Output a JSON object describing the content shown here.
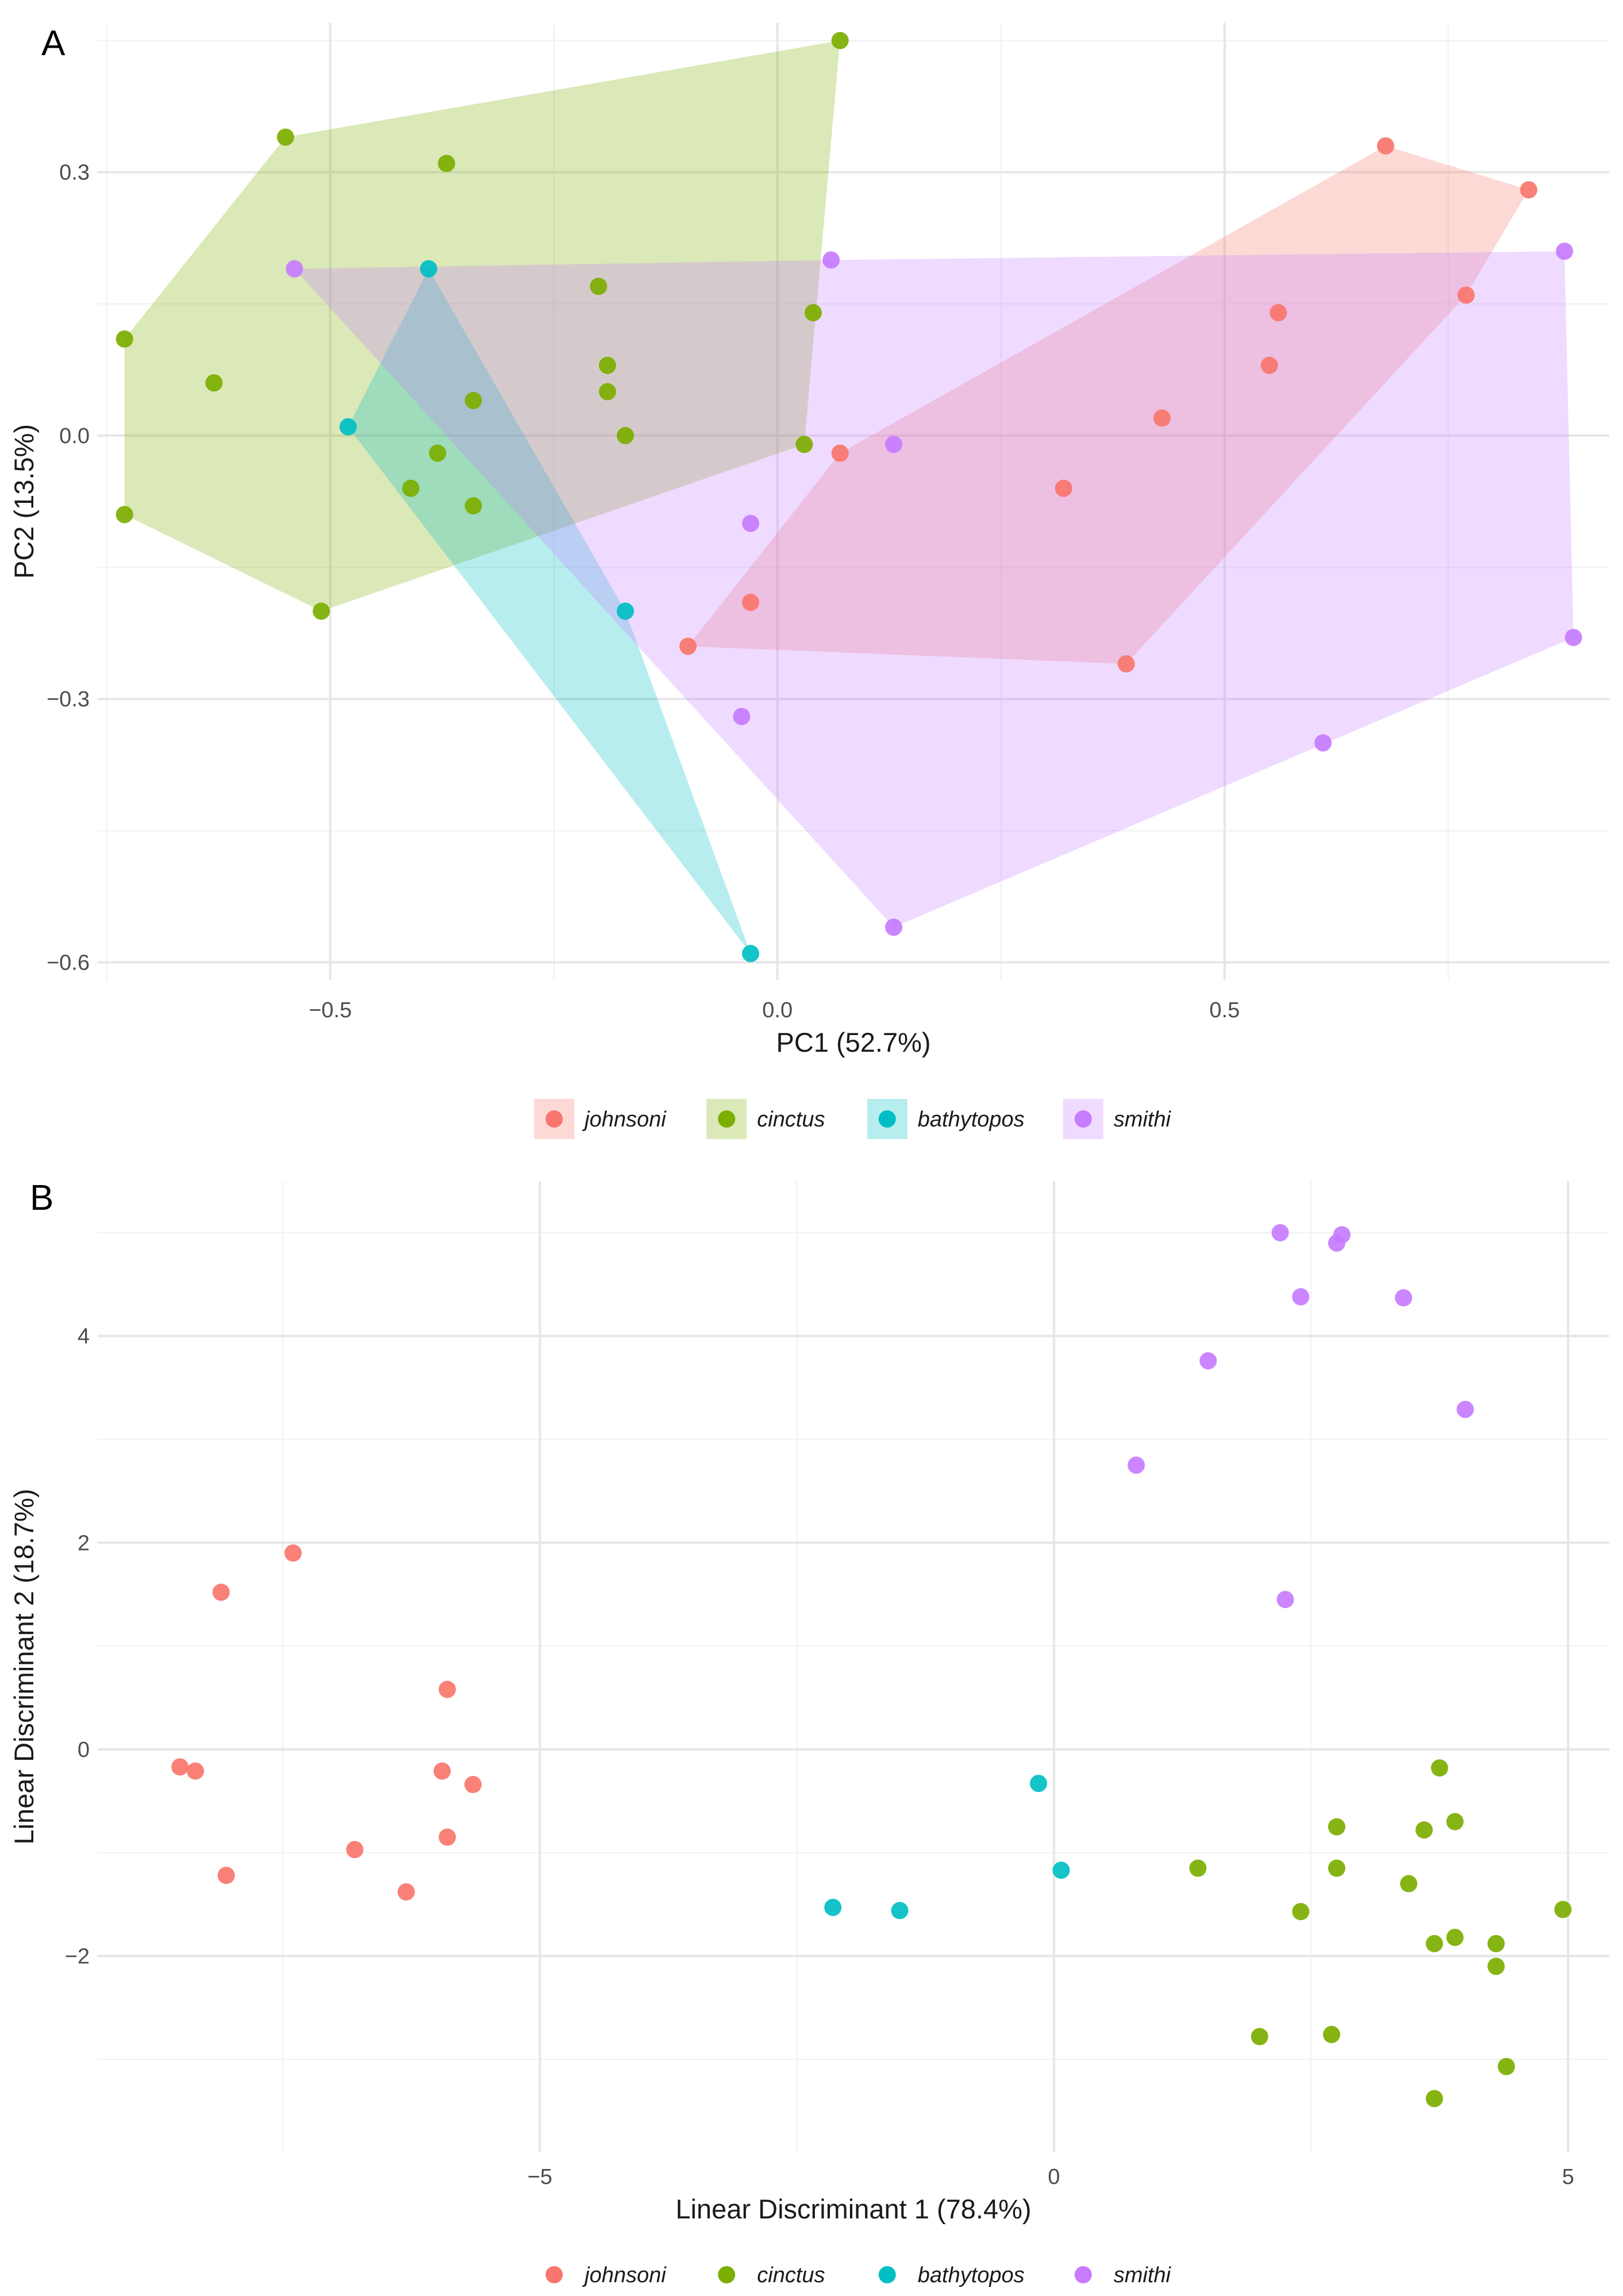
{
  "colors": {
    "johnsoni": "#F8766D",
    "cinctus": "#7CAE00",
    "bathytopos": "#00BFC4",
    "smithi": "#C77CFF"
  },
  "chart_data": [
    {
      "panel": "A",
      "type": "scatter",
      "xlabel": "PC1 (52.7%)",
      "ylabel": "PC2 (13.5%)",
      "xlim": [
        -0.76,
        0.93
      ],
      "ylim": [
        -0.62,
        0.47
      ],
      "xticks": [
        -0.5,
        0.0,
        0.5
      ],
      "xtick_labels": [
        "-0.5",
        "0.0",
        "0.5"
      ],
      "yticks": [
        -0.6,
        -0.3,
        0.0,
        0.3
      ],
      "ytick_labels": [
        "-0.6",
        "-0.3",
        "0.0",
        "0.3"
      ],
      "legend": [
        "johnsoni",
        "cinctus",
        "bathytopos",
        "smithi"
      ],
      "hulls": true,
      "series": [
        {
          "name": "johnsoni",
          "points": [
            [
              0.68,
              0.33
            ],
            [
              0.84,
              0.28
            ],
            [
              0.77,
              0.16
            ],
            [
              0.56,
              0.14
            ],
            [
              0.55,
              0.08
            ],
            [
              0.43,
              0.02
            ],
            [
              0.32,
              -0.06
            ],
            [
              0.07,
              -0.02
            ],
            [
              -0.03,
              -0.19
            ],
            [
              -0.1,
              -0.24
            ],
            [
              0.39,
              -0.26
            ]
          ]
        },
        {
          "name": "cinctus",
          "points": [
            [
              0.07,
              0.45
            ],
            [
              -0.55,
              0.34
            ],
            [
              -0.37,
              0.31
            ],
            [
              -0.73,
              0.11
            ],
            [
              -0.63,
              0.06
            ],
            [
              -0.73,
              -0.09
            ],
            [
              -0.51,
              -0.2
            ],
            [
              -0.2,
              0.17
            ],
            [
              -0.19,
              0.08
            ],
            [
              -0.19,
              0.05
            ],
            [
              -0.17,
              0.0
            ],
            [
              -0.34,
              0.04
            ],
            [
              -0.38,
              -0.02
            ],
            [
              -0.41,
              -0.06
            ],
            [
              -0.34,
              -0.08
            ],
            [
              0.04,
              0.14
            ],
            [
              0.03,
              -0.01
            ]
          ]
        },
        {
          "name": "bathytopos",
          "points": [
            [
              -0.39,
              0.19
            ],
            [
              -0.48,
              0.01
            ],
            [
              -0.17,
              -0.2
            ],
            [
              -0.03,
              -0.59
            ]
          ]
        },
        {
          "name": "smithi",
          "points": [
            [
              -0.54,
              0.19
            ],
            [
              0.06,
              0.2
            ],
            [
              0.13,
              -0.01
            ],
            [
              -0.03,
              -0.1
            ],
            [
              -0.04,
              -0.32
            ],
            [
              0.13,
              -0.56
            ],
            [
              0.61,
              -0.35
            ],
            [
              0.89,
              -0.23
            ],
            [
              0.88,
              0.21
            ]
          ]
        }
      ]
    },
    {
      "panel": "B",
      "type": "scatter",
      "xlabel": "Linear Discriminant 1 (78.4%)",
      "ylabel": "Linear Discriminant 2 (18.7%)",
      "xlim": [
        -9.3,
        5.4
      ],
      "ylim": [
        -3.9,
        5.5
      ],
      "xticks": [
        -5,
        0,
        5
      ],
      "xtick_labels": [
        "-5",
        "0",
        "5"
      ],
      "yticks": [
        -2,
        0,
        2,
        4
      ],
      "ytick_labels": [
        "-2",
        "0",
        "2",
        "4"
      ],
      "legend": [
        "johnsoni",
        "cinctus",
        "bathytopos",
        "smithi"
      ],
      "hulls": false,
      "series": [
        {
          "name": "johnsoni",
          "points": [
            [
              -7.4,
              1.9
            ],
            [
              -8.1,
              1.52
            ],
            [
              -5.9,
              0.58
            ],
            [
              -8.5,
              -0.17
            ],
            [
              -8.35,
              -0.21
            ],
            [
              -5.95,
              -0.21
            ],
            [
              -5.65,
              -0.34
            ],
            [
              -5.9,
              -0.85
            ],
            [
              -6.8,
              -0.97
            ],
            [
              -8.05,
              -1.22
            ],
            [
              -6.3,
              -1.38
            ]
          ]
        },
        {
          "name": "cinctus",
          "points": [
            [
              3.75,
              -0.18
            ],
            [
              3.9,
              -0.7
            ],
            [
              2.75,
              -0.75
            ],
            [
              3.6,
              -0.78
            ],
            [
              1.4,
              -1.15
            ],
            [
              2.75,
              -1.15
            ],
            [
              3.45,
              -1.3
            ],
            [
              2.4,
              -1.57
            ],
            [
              4.95,
              -1.55
            ],
            [
              3.9,
              -1.82
            ],
            [
              3.7,
              -1.88
            ],
            [
              4.3,
              -1.88
            ],
            [
              4.3,
              -2.1
            ],
            [
              2.0,
              -2.78
            ],
            [
              2.7,
              -2.76
            ],
            [
              4.4,
              -3.07
            ],
            [
              3.7,
              -3.38
            ]
          ]
        },
        {
          "name": "bathytopos",
          "points": [
            [
              -0.15,
              -0.33
            ],
            [
              0.07,
              -1.17
            ],
            [
              -2.15,
              -1.53
            ],
            [
              -1.5,
              -1.56
            ]
          ]
        },
        {
          "name": "smithi",
          "points": [
            [
              2.2,
              5.0
            ],
            [
              2.8,
              4.98
            ],
            [
              2.75,
              4.9
            ],
            [
              2.4,
              4.38
            ],
            [
              3.4,
              4.37
            ],
            [
              1.5,
              3.76
            ],
            [
              4.0,
              3.29
            ],
            [
              0.8,
              2.75
            ],
            [
              2.25,
              1.45
            ]
          ]
        }
      ]
    }
  ]
}
